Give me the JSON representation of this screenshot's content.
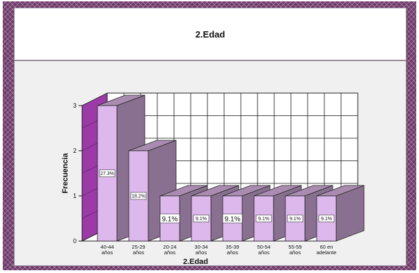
{
  "chart_data": {
    "type": "bar",
    "title": "2.Edad",
    "xlabel": "2.Edad",
    "ylabel": "Frecuencia",
    "ylim": [
      0,
      3
    ],
    "yticks": [
      "0",
      "1",
      "2",
      "3"
    ],
    "categories": [
      [
        "40-44",
        "años"
      ],
      [
        "25-29",
        "años"
      ],
      [
        "20-24",
        "años"
      ],
      [
        "30-34",
        "años"
      ],
      [
        "35-39",
        "años"
      ],
      [
        "50-54",
        "años"
      ],
      [
        "55-59",
        "años"
      ],
      [
        "60 en",
        "adelante"
      ]
    ],
    "values": [
      3,
      2,
      1,
      1,
      1,
      1,
      1,
      1
    ],
    "data_labels": [
      "27.3%",
      "18.2%",
      "9.1%",
      "9.1%",
      "9.1%",
      "9.1%",
      "9.1%",
      "9.1%"
    ],
    "grid": true,
    "style_3d": true,
    "colors": {
      "bar_front": "#dcb8ec",
      "bar_side": "#8a7090",
      "bar_top": "#a98cb0",
      "left_wall": "#9c3aa8",
      "grid": "#111111",
      "frame": "#6f3a6a"
    }
  }
}
